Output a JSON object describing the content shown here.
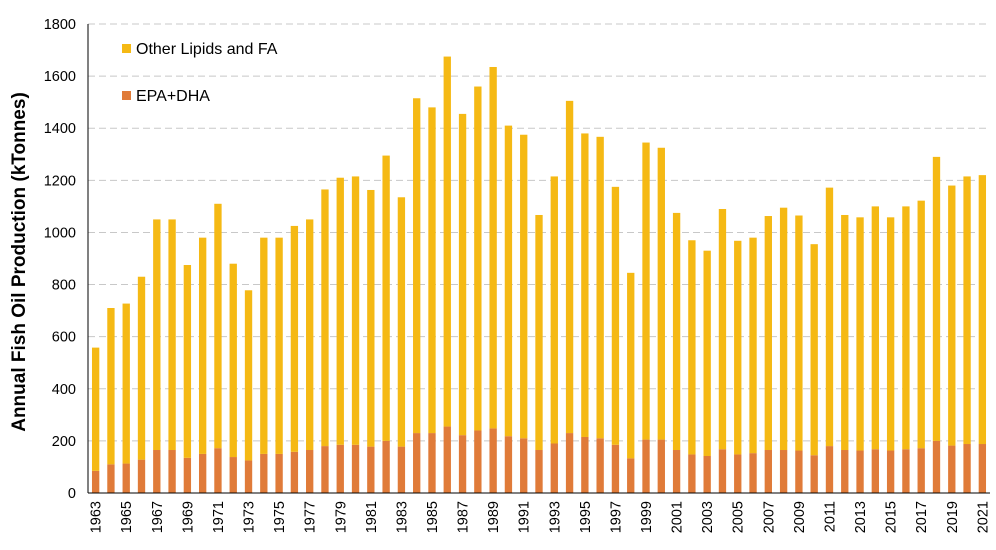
{
  "chart_data": {
    "type": "bar",
    "stacked": true,
    "title": "",
    "xlabel": "",
    "ylabel": "Annual Fish Oil Production (kTonnes)",
    "ylim": [
      0,
      1800
    ],
    "yticks": [
      0,
      200,
      400,
      600,
      800,
      1000,
      1200,
      1400,
      1600,
      1800
    ],
    "grid": "horizontal dashed",
    "legend_position": "top-left",
    "categories": [
      "1963",
      "1964",
      "1965",
      "1966",
      "1967",
      "1968",
      "1969",
      "1970",
      "1971",
      "1972",
      "1973",
      "1974",
      "1975",
      "1976",
      "1977",
      "1978",
      "1979",
      "1980",
      "1981",
      "1982",
      "1983",
      "1984",
      "1985",
      "1986",
      "1987",
      "1988",
      "1989",
      "1990",
      "1991",
      "1992",
      "1993",
      "1994",
      "1995",
      "1996",
      "1997",
      "1998",
      "1999",
      "2000",
      "2001",
      "2002",
      "2003",
      "2004",
      "2005",
      "2006",
      "2007",
      "2008",
      "2009",
      "2010",
      "2011",
      "2012",
      "2013",
      "2014",
      "2015",
      "2016",
      "2017",
      "2018",
      "2019",
      "2020",
      "2021"
    ],
    "series": [
      {
        "name": "EPA+DHA",
        "color": "#e07b39",
        "values": [
          85,
          110,
          113,
          128,
          165,
          165,
          135,
          150,
          172,
          138,
          125,
          150,
          150,
          158,
          165,
          180,
          185,
          185,
          178,
          200,
          178,
          230,
          230,
          255,
          222,
          240,
          248,
          218,
          210,
          165,
          190,
          230,
          215,
          210,
          185,
          133,
          205,
          205,
          165,
          148,
          142,
          168,
          148,
          153,
          165,
          165,
          163,
          145,
          180,
          165,
          163,
          168,
          163,
          168,
          172,
          200,
          182,
          188,
          188
        ]
      },
      {
        "name": "Other Lipids and FA",
        "color": "#f5b914",
        "values": [
          473,
          600,
          614,
          702,
          885,
          885,
          740,
          830,
          938,
          742,
          653,
          830,
          830,
          867,
          885,
          985,
          1025,
          1030,
          985,
          1095,
          957,
          1285,
          1250,
          1420,
          1233,
          1320,
          1387,
          1192,
          1165,
          902,
          1025,
          1275,
          1165,
          1157,
          990,
          712,
          1140,
          1120,
          910,
          822,
          788,
          922,
          820,
          827,
          898,
          930,
          902,
          810,
          992,
          902,
          895,
          932,
          895,
          932,
          950,
          1090,
          998,
          1027,
          1032
        ]
      }
    ],
    "x_tick_labels": [
      "1963",
      "1965",
      "1967",
      "1969",
      "1971",
      "1973",
      "1975",
      "1977",
      "1979",
      "1981",
      "1983",
      "1985",
      "1987",
      "1989",
      "1991",
      "1993",
      "1995",
      "1997",
      "1999",
      "2001",
      "2003",
      "2005",
      "2007",
      "2009",
      "2011",
      "2013",
      "2015",
      "2017",
      "2019",
      "2021"
    ],
    "legend": [
      {
        "label": "Other Lipids and FA",
        "color": "#f5b914"
      },
      {
        "label": "EPA+DHA",
        "color": "#e07b39"
      }
    ]
  }
}
